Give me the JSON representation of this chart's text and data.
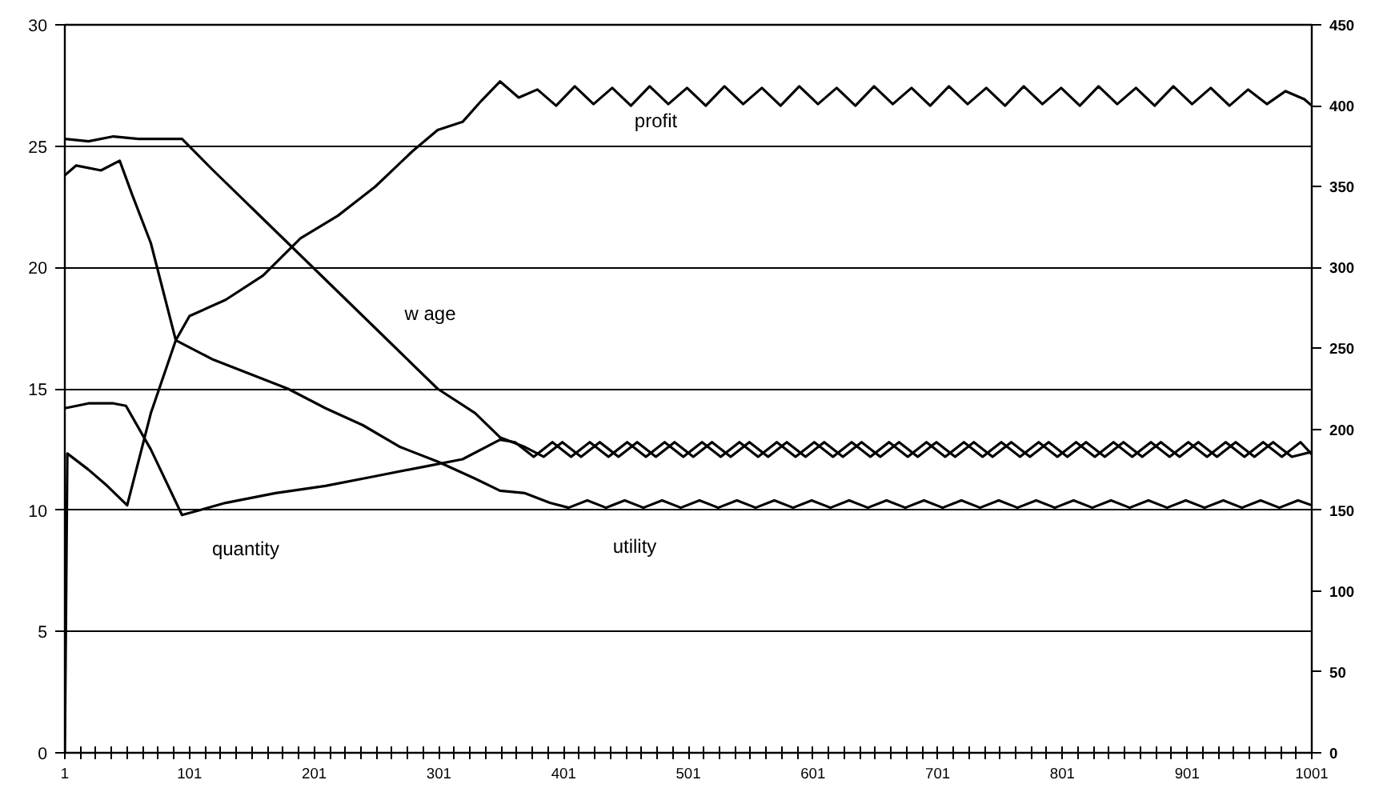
{
  "chart_data": {
    "type": "line",
    "xlim": [
      1,
      1001
    ],
    "ylim": [
      0,
      30
    ],
    "y2lim": [
      0,
      450
    ],
    "xticks": [
      {
        "value": 1,
        "label": "1"
      },
      {
        "value": 13.5,
        "label": null
      },
      {
        "value": 26,
        "label": null
      },
      {
        "value": 38.5,
        "label": null
      },
      {
        "value": 51,
        "label": null
      },
      {
        "value": 63.5,
        "label": null
      },
      {
        "value": 76,
        "label": null
      },
      {
        "value": 88.5,
        "label": null
      },
      {
        "value": 101,
        "label": "101"
      },
      {
        "value": 113.5,
        "label": null
      },
      {
        "value": 126,
        "label": null
      },
      {
        "value": 138.5,
        "label": null
      },
      {
        "value": 151,
        "label": null
      },
      {
        "value": 163.5,
        "label": null
      },
      {
        "value": 176,
        "label": null
      },
      {
        "value": 188.5,
        "label": null
      },
      {
        "value": 201,
        "label": "201"
      },
      {
        "value": 213.5,
        "label": null
      },
      {
        "value": 226,
        "label": null
      },
      {
        "value": 238.5,
        "label": null
      },
      {
        "value": 251,
        "label": null
      },
      {
        "value": 263.5,
        "label": null
      },
      {
        "value": 276,
        "label": null
      },
      {
        "value": 288.5,
        "label": null
      },
      {
        "value": 301,
        "label": "301"
      },
      {
        "value": 313.5,
        "label": null
      },
      {
        "value": 326,
        "label": null
      },
      {
        "value": 338.5,
        "label": null
      },
      {
        "value": 351,
        "label": null
      },
      {
        "value": 363.5,
        "label": null
      },
      {
        "value": 376,
        "label": null
      },
      {
        "value": 388.5,
        "label": null
      },
      {
        "value": 401,
        "label": "401"
      },
      {
        "value": 413.5,
        "label": null
      },
      {
        "value": 426,
        "label": null
      },
      {
        "value": 438.5,
        "label": null
      },
      {
        "value": 451,
        "label": null
      },
      {
        "value": 463.5,
        "label": null
      },
      {
        "value": 476,
        "label": null
      },
      {
        "value": 488.5,
        "label": null
      },
      {
        "value": 501,
        "label": "501"
      },
      {
        "value": 513.5,
        "label": null
      },
      {
        "value": 526,
        "label": null
      },
      {
        "value": 538.5,
        "label": null
      },
      {
        "value": 551,
        "label": null
      },
      {
        "value": 563.5,
        "label": null
      },
      {
        "value": 576,
        "label": null
      },
      {
        "value": 588.5,
        "label": null
      },
      {
        "value": 601,
        "label": "601"
      },
      {
        "value": 613.5,
        "label": null
      },
      {
        "value": 626,
        "label": null
      },
      {
        "value": 638.5,
        "label": null
      },
      {
        "value": 651,
        "label": null
      },
      {
        "value": 663.5,
        "label": null
      },
      {
        "value": 676,
        "label": null
      },
      {
        "value": 688.5,
        "label": null
      },
      {
        "value": 701,
        "label": "701"
      },
      {
        "value": 713.5,
        "label": null
      },
      {
        "value": 726,
        "label": null
      },
      {
        "value": 738.5,
        "label": null
      },
      {
        "value": 751,
        "label": null
      },
      {
        "value": 763.5,
        "label": null
      },
      {
        "value": 776,
        "label": null
      },
      {
        "value": 788.5,
        "label": null
      },
      {
        "value": 801,
        "label": "801"
      },
      {
        "value": 813.5,
        "label": null
      },
      {
        "value": 826,
        "label": null
      },
      {
        "value": 838.5,
        "label": null
      },
      {
        "value": 851,
        "label": null
      },
      {
        "value": 863.5,
        "label": null
      },
      {
        "value": 876,
        "label": null
      },
      {
        "value": 888.5,
        "label": null
      },
      {
        "value": 901,
        "label": "901"
      },
      {
        "value": 913.5,
        "label": null
      },
      {
        "value": 926,
        "label": null
      },
      {
        "value": 938.5,
        "label": null
      },
      {
        "value": 951,
        "label": null
      },
      {
        "value": 963.5,
        "label": null
      },
      {
        "value": 976,
        "label": null
      },
      {
        "value": 988.5,
        "label": null
      },
      {
        "value": 1001,
        "label": "1001"
      }
    ],
    "yticks": [
      0,
      5,
      10,
      15,
      20,
      25,
      30
    ],
    "y2ticks": [
      0,
      50,
      100,
      150,
      200,
      250,
      300,
      350,
      400,
      450
    ],
    "grid": "y",
    "marker": "none",
    "line_style": "solid",
    "series": [
      {
        "color": "#000000",
        "axis": "y2",
        "x": [
          1,
          3,
          20,
          35,
          51,
          70,
          90,
          101,
          130,
          160,
          190,
          220,
          250,
          280,
          300,
          320,
          335,
          350,
          365,
          380,
          395,
          410,
          425,
          440,
          455,
          470,
          485,
          500,
          515,
          530,
          545,
          560,
          575,
          590,
          605,
          620,
          635,
          650,
          665,
          680,
          695,
          710,
          725,
          740,
          755,
          770,
          785,
          800,
          815,
          830,
          845,
          860,
          875,
          890,
          905,
          920,
          935,
          950,
          965,
          980,
          995,
          1001
        ],
        "values": [
          0,
          185,
          175,
          165,
          153,
          210,
          255,
          270,
          280,
          295,
          318,
          332,
          350,
          372,
          385,
          390,
          403,
          415,
          405,
          410,
          400,
          412,
          401,
          411,
          400,
          412,
          401,
          411,
          400,
          412,
          401,
          411,
          400,
          412,
          401,
          411,
          400,
          412,
          401,
          411,
          400,
          412,
          401,
          411,
          400,
          412,
          401,
          411,
          400,
          412,
          401,
          411,
          400,
          412,
          401,
          411,
          400,
          410,
          401,
          409,
          404,
          400
        ]
      },
      {
        "color": "#000000",
        "x": [
          1,
          20,
          40,
          60,
          95,
          120,
          150,
          180,
          210,
          240,
          270,
          300,
          330,
          350,
          370,
          385,
          400,
          415,
          430,
          445,
          460,
          475,
          490,
          505,
          520,
          535,
          550,
          565,
          580,
          595,
          610,
          625,
          640,
          655,
          670,
          685,
          700,
          715,
          730,
          745,
          760,
          775,
          790,
          805,
          820,
          835,
          850,
          865,
          880,
          895,
          910,
          925,
          940,
          955,
          970,
          985,
          1001
        ],
        "values": [
          25.3,
          25.2,
          25.4,
          25.3,
          25.3,
          24,
          22.5,
          21,
          19.5,
          18,
          16.5,
          15,
          14,
          13,
          12.6,
          12.2,
          12.8,
          12.2,
          12.8,
          12.2,
          12.8,
          12.2,
          12.8,
          12.2,
          12.8,
          12.2,
          12.8,
          12.2,
          12.8,
          12.2,
          12.8,
          12.2,
          12.8,
          12.2,
          12.8,
          12.2,
          12.8,
          12.2,
          12.8,
          12.2,
          12.8,
          12.2,
          12.8,
          12.2,
          12.8,
          12.2,
          12.8,
          12.2,
          12.8,
          12.2,
          12.8,
          12.2,
          12.8,
          12.2,
          12.8,
          12.2,
          12.4
        ]
      },
      {
        "color": "#000000",
        "x": [
          1,
          20,
          40,
          50,
          70,
          95,
          130,
          170,
          210,
          250,
          290,
          320,
          350,
          362,
          377,
          392,
          407,
          422,
          437,
          452,
          467,
          482,
          497,
          512,
          527,
          542,
          557,
          572,
          587,
          602,
          617,
          632,
          647,
          662,
          677,
          692,
          707,
          722,
          737,
          752,
          767,
          782,
          797,
          812,
          827,
          842,
          857,
          872,
          887,
          902,
          917,
          932,
          947,
          962,
          977,
          992,
          1001
        ],
        "values": [
          14.2,
          14.4,
          14.4,
          14.3,
          12.5,
          9.8,
          10.3,
          10.7,
          11,
          11.4,
          11.8,
          12.1,
          12.9,
          12.8,
          12.2,
          12.8,
          12.2,
          12.8,
          12.2,
          12.8,
          12.2,
          12.8,
          12.2,
          12.8,
          12.2,
          12.8,
          12.2,
          12.8,
          12.2,
          12.8,
          12.2,
          12.8,
          12.2,
          12.8,
          12.2,
          12.8,
          12.2,
          12.8,
          12.2,
          12.8,
          12.2,
          12.8,
          12.2,
          12.8,
          12.2,
          12.8,
          12.2,
          12.8,
          12.2,
          12.8,
          12.2,
          12.8,
          12.2,
          12.8,
          12.2,
          12.8,
          12.3
        ]
      },
      {
        "color": "#000000",
        "x": [
          1,
          10,
          30,
          45,
          55,
          70,
          90,
          120,
          150,
          180,
          210,
          240,
          270,
          300,
          330,
          350,
          370,
          390,
          405,
          420,
          435,
          450,
          465,
          480,
          495,
          510,
          525,
          540,
          555,
          570,
          585,
          600,
          615,
          630,
          645,
          660,
          675,
          690,
          705,
          720,
          735,
          750,
          765,
          780,
          795,
          810,
          825,
          840,
          855,
          870,
          885,
          900,
          915,
          930,
          945,
          960,
          975,
          990,
          1001
        ],
        "values": [
          23.8,
          24.2,
          24,
          24.4,
          23,
          21,
          17,
          16.2,
          15.6,
          15,
          14.2,
          13.5,
          12.6,
          12,
          11.3,
          10.8,
          10.7,
          10.3,
          10.1,
          10.4,
          10.1,
          10.4,
          10.1,
          10.4,
          10.1,
          10.4,
          10.1,
          10.4,
          10.1,
          10.4,
          10.1,
          10.4,
          10.1,
          10.4,
          10.1,
          10.4,
          10.1,
          10.4,
          10.1,
          10.4,
          10.1,
          10.4,
          10.1,
          10.4,
          10.1,
          10.4,
          10.1,
          10.4,
          10.1,
          10.4,
          10.1,
          10.4,
          10.1,
          10.4,
          10.1,
          10.4,
          10.1,
          10.4,
          10.2
        ]
      }
    ],
    "annotations": [
      "profit",
      "w age",
      "quantity",
      "utility"
    ]
  }
}
